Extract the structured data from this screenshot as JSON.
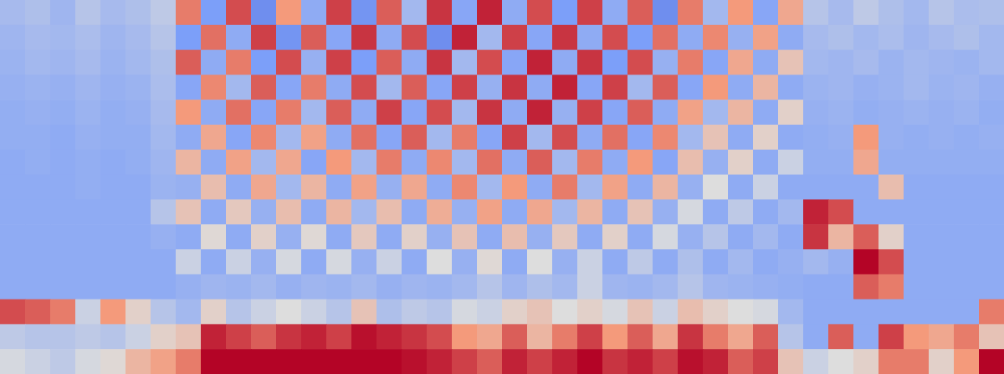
{
  "chart_data": {
    "type": "heatmap",
    "xlim": [
      0,
      40
    ],
    "ylim": [
      0,
      15
    ],
    "zlim": [
      0,
      100
    ],
    "tick_labels": false,
    "cells": [
      [
        36,
        38,
        34,
        40,
        36,
        38,
        42,
        80,
        25,
        88,
        20,
        75,
        30,
        90,
        22,
        85,
        35,
        92,
        28,
        95,
        30,
        88,
        25,
        90,
        30,
        85,
        20,
        80,
        35,
        75,
        28,
        70,
        40,
        36,
        42,
        38,
        35,
        40,
        37,
        38
      ],
      [
        34,
        36,
        35,
        37,
        34,
        36,
        40,
        25,
        82,
        30,
        90,
        22,
        85,
        28,
        92,
        30,
        88,
        20,
        95,
        35,
        90,
        28,
        92,
        30,
        88,
        25,
        82,
        30,
        78,
        32,
        72,
        30,
        36,
        38,
        35,
        37,
        34,
        36,
        38,
        35
      ],
      [
        33,
        35,
        34,
        36,
        33,
        35,
        38,
        85,
        30,
        80,
        25,
        88,
        32,
        90,
        25,
        85,
        30,
        92,
        35,
        88,
        28,
        95,
        30,
        92,
        25,
        88,
        32,
        80,
        28,
        70,
        30,
        60,
        35,
        34,
        36,
        33,
        35,
        34,
        33,
        35
      ],
      [
        32,
        33,
        32,
        34,
        32,
        33,
        37,
        28,
        78,
        35,
        85,
        28,
        80,
        30,
        88,
        35,
        85,
        28,
        90,
        32,
        92,
        30,
        95,
        28,
        90,
        35,
        85,
        28,
        75,
        30,
        65,
        30,
        33,
        34,
        32,
        33,
        35,
        33,
        34,
        32
      ],
      [
        31,
        32,
        31,
        33,
        31,
        32,
        36,
        75,
        30,
        82,
        28,
        80,
        35,
        85,
        30,
        90,
        28,
        88,
        35,
        92,
        30,
        95,
        32,
        90,
        28,
        85,
        30,
        72,
        35,
        65,
        30,
        55,
        32,
        33,
        31,
        32,
        33,
        32,
        33,
        31
      ],
      [
        31,
        31,
        30,
        32,
        31,
        31,
        35,
        30,
        70,
        28,
        78,
        35,
        72,
        30,
        82,
        28,
        85,
        35,
        80,
        28,
        90,
        35,
        88,
        30,
        82,
        28,
        78,
        35,
        60,
        30,
        55,
        30,
        31,
        32,
        75,
        32,
        31,
        32,
        31,
        32
      ],
      [
        30,
        31,
        30,
        31,
        30,
        31,
        34,
        65,
        30,
        72,
        35,
        70,
        28,
        75,
        35,
        80,
        30,
        78,
        35,
        82,
        30,
        85,
        35,
        80,
        30,
        75,
        28,
        62,
        32,
        55,
        30,
        45,
        31,
        31,
        70,
        31,
        31,
        31,
        31,
        31
      ],
      [
        30,
        30,
        30,
        31,
        30,
        30,
        33,
        32,
        62,
        30,
        70,
        35,
        65,
        30,
        72,
        32,
        70,
        30,
        78,
        35,
        75,
        30,
        80,
        35,
        72,
        30,
        65,
        32,
        50,
        30,
        45,
        30,
        30,
        30,
        30,
        62,
        30,
        30,
        30,
        30
      ],
      [
        30,
        30,
        30,
        30,
        30,
        30,
        40,
        60,
        30,
        58,
        32,
        62,
        30,
        65,
        35,
        62,
        30,
        68,
        32,
        72,
        30,
        70,
        35,
        65,
        30,
        60,
        32,
        48,
        30,
        42,
        30,
        35,
        95,
        88,
        30,
        30,
        30,
        30,
        30,
        30
      ],
      [
        30,
        30,
        30,
        30,
        30,
        30,
        32,
        30,
        52,
        30,
        55,
        32,
        52,
        30,
        58,
        30,
        55,
        32,
        60,
        30,
        62,
        32,
        58,
        30,
        55,
        30,
        48,
        32,
        40,
        30,
        35,
        30,
        92,
        65,
        85,
        55,
        30,
        30,
        30,
        30
      ],
      [
        30,
        30,
        30,
        30,
        30,
        30,
        30,
        45,
        30,
        45,
        32,
        48,
        30,
        48,
        32,
        45,
        30,
        50,
        32,
        52,
        30,
        50,
        32,
        45,
        30,
        42,
        30,
        38,
        30,
        35,
        30,
        32,
        35,
        32,
        100,
        88,
        30,
        30,
        30,
        30
      ],
      [
        30,
        30,
        30,
        30,
        30,
        30,
        30,
        32,
        34,
        33,
        35,
        32,
        34,
        33,
        35,
        32,
        34,
        33,
        35,
        40,
        34,
        38,
        35,
        45,
        34,
        33,
        35,
        40,
        34,
        33,
        32,
        31,
        30,
        30,
        85,
        80,
        30,
        30,
        30,
        30
      ],
      [
        88,
        85,
        80,
        45,
        75,
        55,
        40,
        35,
        55,
        40,
        45,
        50,
        45,
        40,
        60,
        38,
        42,
        40,
        48,
        45,
        55,
        60,
        50,
        55,
        48,
        60,
        45,
        62,
        55,
        50,
        48,
        35,
        30,
        30,
        30,
        30,
        30,
        30,
        30,
        80
      ],
      [
        42,
        40,
        40,
        42,
        40,
        45,
        55,
        60,
        95,
        90,
        85,
        92,
        95,
        90,
        98,
        95,
        92,
        88,
        75,
        70,
        85,
        65,
        80,
        90,
        75,
        85,
        70,
        92,
        80,
        70,
        85,
        40,
        30,
        85,
        30,
        90,
        75,
        70,
        80,
        60
      ],
      [
        48,
        45,
        42,
        48,
        52,
        65,
        72,
        80,
        100,
        100,
        100,
        100,
        100,
        100,
        100,
        100,
        98,
        95,
        90,
        85,
        95,
        90,
        95,
        100,
        92,
        95,
        90,
        98,
        95,
        85,
        90,
        60,
        45,
        50,
        55,
        80,
        80,
        55,
        75,
        100
      ]
    ]
  }
}
